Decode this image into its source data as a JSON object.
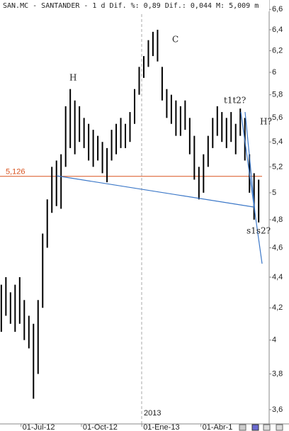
{
  "chart_data": {
    "type": "range",
    "title": "SAN.MC - SANTANDER - 1 d Dif. %: 0,89 Dif.: 0,044 M: 5,009 m",
    "year_label": "2013",
    "log_scale": true,
    "x": [
      "2012-06-01",
      "2012-06-08",
      "2012-06-15",
      "2012-06-22",
      "2012-06-29",
      "2012-07-06",
      "2012-07-13",
      "2012-07-20",
      "2012-07-27",
      "2012-08-03",
      "2012-08-10",
      "2012-08-17",
      "2012-08-24",
      "2012-08-31",
      "2012-09-07",
      "2012-09-14",
      "2012-09-21",
      "2012-09-28",
      "2012-10-05",
      "2012-10-12",
      "2012-10-19",
      "2012-10-26",
      "2012-11-02",
      "2012-11-09",
      "2012-11-16",
      "2012-11-23",
      "2012-11-30",
      "2012-12-07",
      "2012-12-14",
      "2012-12-21",
      "2012-12-28",
      "2013-01-04",
      "2013-01-11",
      "2013-01-18",
      "2013-01-25",
      "2013-02-01",
      "2013-02-08",
      "2013-02-15",
      "2013-02-22",
      "2013-03-01",
      "2013-03-08",
      "2013-03-15",
      "2013-03-22",
      "2013-03-29",
      "2013-04-05",
      "2013-04-12",
      "2013-04-19",
      "2013-04-26",
      "2013-05-03",
      "2013-05-10",
      "2013-05-17",
      "2013-05-24",
      "2013-05-31",
      "2013-06-07",
      "2013-06-14",
      "2013-06-21",
      "2013-06-28"
    ],
    "series": [
      {
        "color": "#000000",
        "low": [
          4.05,
          4.15,
          4.1,
          4.05,
          4.1,
          4.0,
          3.95,
          3.66,
          3.8,
          4.2,
          4.6,
          4.85,
          4.9,
          4.88,
          5.2,
          5.35,
          5.3,
          5.4,
          5.35,
          5.25,
          5.2,
          5.25,
          5.15,
          5.08,
          5.25,
          5.3,
          5.35,
          5.35,
          5.4,
          5.55,
          5.8,
          5.95,
          6.05,
          6.15,
          6.1,
          5.75,
          5.6,
          5.55,
          5.45,
          5.45,
          5.5,
          5.3,
          5.1,
          4.95,
          5.0,
          5.2,
          5.35,
          5.45,
          5.4,
          5.35,
          5.4,
          5.3,
          5.45,
          5.25,
          5.0,
          4.8,
          4.78
        ],
        "high": [
          4.35,
          4.4,
          4.3,
          4.35,
          4.4,
          4.25,
          4.15,
          4.1,
          4.25,
          4.7,
          4.95,
          5.2,
          5.25,
          5.3,
          5.7,
          5.85,
          5.75,
          5.7,
          5.6,
          5.55,
          5.5,
          5.45,
          5.4,
          5.35,
          5.5,
          5.55,
          5.6,
          5.55,
          5.65,
          5.85,
          6.05,
          6.15,
          6.3,
          6.38,
          6.4,
          6.05,
          5.85,
          5.8,
          5.75,
          5.7,
          5.75,
          5.6,
          5.45,
          5.2,
          5.3,
          5.45,
          5.6,
          5.7,
          5.65,
          5.6,
          5.65,
          5.55,
          5.68,
          5.6,
          5.3,
          5.15,
          5.1
        ]
      }
    ],
    "xlim": [
      "2012-05-30",
      "2013-07-14"
    ],
    "xticks": [
      {
        "value": "2012-07-01",
        "label": "01-Jul-12"
      },
      {
        "value": "2012-10-01",
        "label": "01-Oct-12"
      },
      {
        "value": "2013-01-01",
        "label": "01-Ene-13"
      },
      {
        "value": "2013-04-01",
        "label": "01-Abr-1"
      }
    ],
    "ylim": [
      3.523,
      6.695
    ],
    "yticks": [
      {
        "value": 3.6,
        "label": "3,6"
      },
      {
        "value": 3.8,
        "label": "3,8"
      },
      4,
      {
        "value": 4.2,
        "label": "4,2"
      },
      {
        "value": 4.4,
        "label": "4,4"
      },
      {
        "value": 4.6,
        "label": "4,6"
      },
      {
        "value": 4.8,
        "label": "4,8"
      },
      5,
      {
        "value": 5.2,
        "label": "5,2"
      },
      {
        "value": 5.4,
        "label": "5,4"
      },
      {
        "value": 5.6,
        "label": "5,6"
      },
      {
        "value": 5.8,
        "label": "5,8"
      },
      6,
      {
        "value": 6.2,
        "label": "6,2"
      },
      {
        "value": 6.4,
        "label": "6,4"
      },
      {
        "value": 6.6,
        "label": "6,6"
      }
    ],
    "hline": {
      "value": 5.126,
      "label": "5,126",
      "color": "#d9531e"
    },
    "annotations": [
      "H",
      "C",
      "t1t2?",
      "H?",
      "s1s2?"
    ]
  }
}
